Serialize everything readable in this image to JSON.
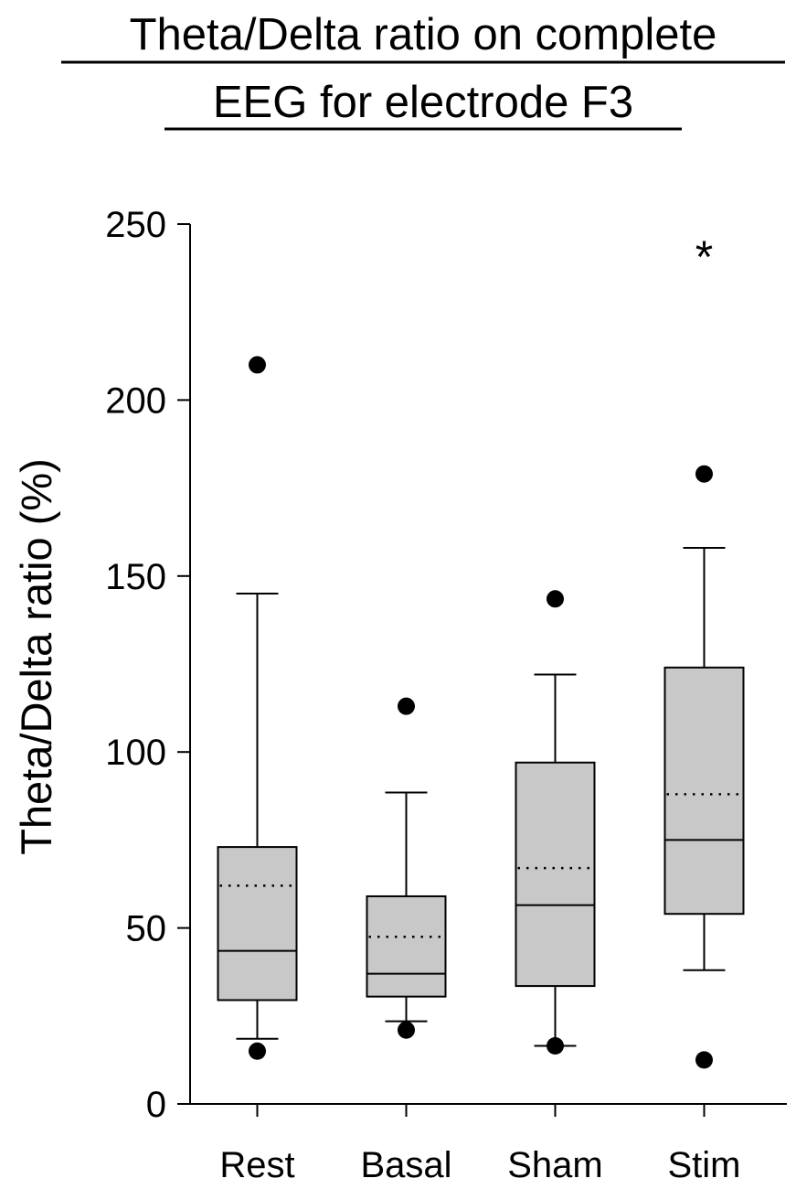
{
  "chart_data": {
    "type": "box",
    "title_lines": [
      "Theta/Delta ratio on complete",
      "EEG for electrode F3"
    ],
    "ylabel": "Theta/Delta ratio (%)",
    "xlabel": "",
    "ylim": [
      0,
      250
    ],
    "yticks": [
      0,
      50,
      100,
      150,
      200,
      250
    ],
    "ytick_labels": [
      "0",
      "50",
      "100",
      "150",
      "200",
      "250"
    ],
    "categories": [
      "Rest",
      "Basal",
      "Sham",
      "Stim"
    ],
    "boxes": [
      {
        "category": "Rest",
        "whisker_low": 18.5,
        "q1": 29.5,
        "median": 43.5,
        "q3": 73,
        "whisker_high": 145,
        "mean": 62,
        "outliers": [
          15,
          210
        ]
      },
      {
        "category": "Basal",
        "whisker_low": 23.5,
        "q1": 30.5,
        "median": 37,
        "q3": 59,
        "whisker_high": 88.5,
        "mean": 47.5,
        "outliers": [
          21,
          113
        ]
      },
      {
        "category": "Sham",
        "whisker_low": 16.5,
        "q1": 33.5,
        "median": 56.5,
        "q3": 97,
        "whisker_high": 122,
        "mean": 67,
        "outliers": [
          16.5,
          143.5
        ]
      },
      {
        "category": "Stim",
        "whisker_low": 38,
        "q1": 54,
        "median": 75,
        "q3": 124,
        "whisker_high": 158,
        "mean": 88,
        "outliers": [
          12.5,
          179
        ]
      }
    ],
    "annotations": [
      {
        "category": "Stim",
        "text": "*",
        "y": 245
      }
    ],
    "grid": false,
    "legend": "none",
    "colors": {
      "box_fill": "#c8c8c8",
      "stroke": "#000000",
      "outlier": "#000000"
    }
  }
}
